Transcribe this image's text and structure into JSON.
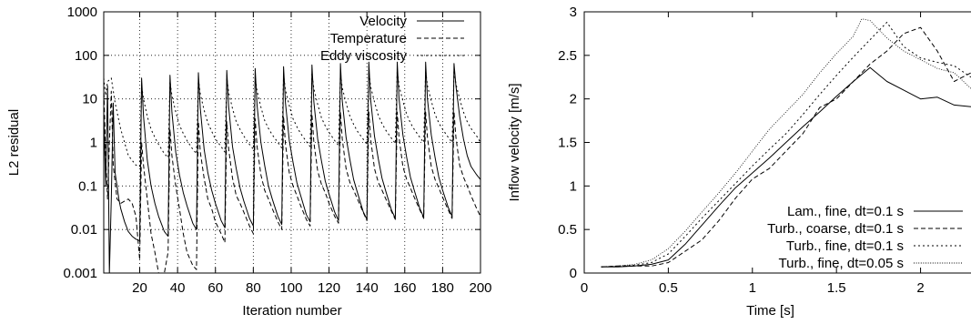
{
  "chart_data": [
    {
      "type": "line",
      "xlabel": "Iteration number",
      "ylabel": "L2 residual",
      "yscale": "log",
      "xlim": [
        1,
        200
      ],
      "ylim": [
        0.001,
        1000
      ],
      "xticks": [
        "20",
        "40",
        "60",
        "80",
        "100",
        "120",
        "140",
        "160",
        "180",
        "200"
      ],
      "yticks": [
        "0.001",
        "0.01",
        "0.1",
        "1",
        "10",
        "100",
        "1000"
      ],
      "grid": true,
      "legend_position": "top-right",
      "series": [
        {
          "name": "Velocity",
          "line_style": "solid",
          "x": [
            1,
            2,
            3,
            4,
            5,
            6,
            7,
            8,
            9,
            10,
            12,
            14,
            16,
            18,
            20,
            21,
            22,
            24,
            26,
            28,
            30,
            33,
            35,
            36,
            37,
            39,
            41,
            43,
            45,
            48,
            50,
            51,
            52,
            54,
            56,
            58,
            60,
            63,
            65,
            66,
            67,
            69,
            71,
            73,
            75,
            78,
            80,
            81,
            82,
            84,
            86,
            88,
            90,
            93,
            95,
            96,
            97,
            99,
            101,
            103,
            105,
            108,
            110,
            111,
            112,
            114,
            116,
            118,
            120,
            123,
            125,
            126,
            127,
            129,
            131,
            133,
            135,
            138,
            140,
            141,
            142,
            144,
            146,
            148,
            150,
            153,
            155,
            156,
            157,
            159,
            161,
            163,
            165,
            168,
            170,
            171,
            172,
            174,
            176,
            178,
            180,
            183,
            185,
            186,
            187,
            189,
            191,
            193,
            195,
            198,
            200
          ],
          "y": [
            5,
            0.1,
            20,
            0.001,
            0.05,
            8,
            0.2,
            0.1,
            0.05,
            0.03,
            0.015,
            0.009,
            0.007,
            0.006,
            0.0055,
            30,
            4,
            0.4,
            0.1,
            0.04,
            0.02,
            0.009,
            0.007,
            35,
            5,
            0.6,
            0.18,
            0.07,
            0.035,
            0.014,
            0.01,
            40,
            6,
            0.7,
            0.2,
            0.08,
            0.04,
            0.016,
            0.011,
            45,
            6.5,
            0.8,
            0.25,
            0.09,
            0.045,
            0.018,
            0.012,
            50,
            7,
            1,
            0.3,
            0.1,
            0.05,
            0.02,
            0.013,
            55,
            8,
            1.1,
            0.35,
            0.12,
            0.06,
            0.022,
            0.015,
            60,
            8.5,
            1.2,
            0.38,
            0.13,
            0.065,
            0.025,
            0.016,
            65,
            9,
            1.3,
            0.4,
            0.14,
            0.07,
            0.026,
            0.017,
            70,
            9.5,
            1.4,
            0.42,
            0.15,
            0.075,
            0.028,
            0.018,
            70,
            10,
            1.5,
            0.45,
            0.16,
            0.08,
            0.03,
            0.019,
            70,
            10,
            1.5,
            0.45,
            0.16,
            0.08,
            0.032,
            0.02,
            65,
            20,
            4,
            1.2,
            0.5,
            0.28,
            0.18,
            0.14
          ]
        },
        {
          "name": "Temperature",
          "line_style": "dashed",
          "x": [
            1,
            2,
            3,
            4,
            5,
            6,
            8,
            10,
            12,
            14,
            16,
            18,
            20,
            21,
            22,
            24,
            26,
            28,
            30,
            33,
            35,
            36,
            37,
            39,
            41,
            43,
            45,
            48,
            50,
            51,
            52,
            54,
            56,
            58,
            60,
            63,
            65,
            66,
            67,
            69,
            71,
            73,
            75,
            78,
            80,
            81,
            82,
            84,
            86,
            88,
            90,
            93,
            95,
            96,
            97,
            99,
            101,
            103,
            105,
            108,
            110,
            111,
            112,
            114,
            116,
            118,
            120,
            123,
            125,
            126,
            127,
            129,
            131,
            133,
            135,
            138,
            140,
            141,
            142,
            144,
            146,
            148,
            150,
            153,
            155,
            156,
            157,
            159,
            161,
            163,
            165,
            168,
            170,
            171,
            172,
            174,
            176,
            178,
            180,
            183,
            185,
            186,
            187,
            189,
            191,
            193,
            195,
            198,
            200
          ],
          "y": [
            20,
            0.5,
            0.05,
            1,
            15,
            0.3,
            0.05,
            0.04,
            0.045,
            0.05,
            0.04,
            0.02,
            0.002,
            1,
            0.3,
            0.05,
            0.008,
            0.003,
            0.001,
            0.0007,
            0.003,
            2,
            0.5,
            0.1,
            0.03,
            0.008,
            0.003,
            0.0015,
            0.0012,
            3,
            0.6,
            0.15,
            0.05,
            0.03,
            0.015,
            0.008,
            0.005,
            3,
            0.7,
            0.15,
            0.06,
            0.04,
            0.025,
            0.012,
            0.008,
            3.5,
            0.8,
            0.18,
            0.08,
            0.05,
            0.03,
            0.015,
            0.01,
            4,
            0.9,
            0.2,
            0.1,
            0.06,
            0.035,
            0.017,
            0.012,
            4.5,
            1,
            0.22,
            0.11,
            0.07,
            0.04,
            0.02,
            0.014,
            5,
            1.2,
            0.25,
            0.12,
            0.08,
            0.05,
            0.025,
            0.016,
            5,
            1.2,
            0.25,
            0.12,
            0.08,
            0.05,
            0.026,
            0.017,
            5,
            1.3,
            0.28,
            0.14,
            0.09,
            0.055,
            0.028,
            0.018,
            5,
            1.3,
            0.28,
            0.14,
            0.09,
            0.055,
            0.028,
            0.018,
            5,
            1.3,
            0.3,
            0.16,
            0.1,
            0.06,
            0.03,
            0.02
          ]
        },
        {
          "name": "Eddy viscosity",
          "line_style": "dotted",
          "x": [
            1,
            2,
            3,
            5,
            7,
            10,
            14,
            18,
            20,
            21,
            22,
            24,
            26,
            28,
            30,
            33,
            35,
            36,
            37,
            39,
            41,
            43,
            45,
            48,
            50,
            51,
            52,
            54,
            56,
            58,
            60,
            63,
            65,
            66,
            67,
            69,
            71,
            73,
            75,
            78,
            80,
            81,
            82,
            84,
            86,
            88,
            90,
            93,
            95,
            96,
            97,
            99,
            101,
            103,
            105,
            108,
            110,
            111,
            112,
            114,
            116,
            118,
            120,
            123,
            125,
            126,
            127,
            129,
            131,
            133,
            135,
            138,
            140,
            141,
            142,
            144,
            146,
            148,
            150,
            153,
            155,
            156,
            157,
            159,
            161,
            163,
            165,
            168,
            170,
            171,
            172,
            174,
            176,
            178,
            180,
            183,
            185,
            186,
            187,
            189,
            191,
            193,
            195,
            198,
            200
          ],
          "y": [
            30,
            12,
            25,
            30,
            8,
            2,
            0.5,
            0.3,
            0.28,
            20,
            10,
            4,
            2,
            1.3,
            0.9,
            0.55,
            0.45,
            25,
            12,
            5,
            2.5,
            1.6,
            1.1,
            0.7,
            0.55,
            28,
            13,
            5.5,
            2.8,
            1.8,
            1.2,
            0.8,
            0.6,
            30,
            14,
            6,
            3,
            2,
            1.4,
            0.9,
            0.7,
            32,
            15,
            6.5,
            3.2,
            2.1,
            1.5,
            1,
            0.75,
            35,
            16,
            7,
            3.5,
            2.3,
            1.6,
            1.05,
            0.8,
            38,
            17,
            7.5,
            3.7,
            2.4,
            1.7,
            1.1,
            0.85,
            40,
            18,
            8,
            4,
            2.6,
            1.8,
            1.2,
            0.9,
            42,
            19,
            8.5,
            4.2,
            2.7,
            1.9,
            1.25,
            0.95,
            45,
            20,
            9,
            4.4,
            2.8,
            2,
            1.3,
            1,
            45,
            20,
            9,
            4.4,
            2.8,
            2,
            1.3,
            1,
            45,
            22,
            10,
            5,
            3,
            2.1,
            1.4,
            1
          ]
        }
      ]
    },
    {
      "type": "line",
      "xlabel": "Time [s]",
      "ylabel": "Inflow velocity [m/s]",
      "xlim": [
        0,
        2.3
      ],
      "ylim": [
        0,
        3
      ],
      "xticks": [
        "0",
        "0.5",
        "1",
        "1.5",
        "2"
      ],
      "yticks": [
        "0",
        "0.5",
        "1",
        "1.5",
        "2",
        "2.5",
        "3"
      ],
      "grid": false,
      "legend_position": "bottom-right",
      "series": [
        {
          "name": "Lam., fine, dt=0.1 s",
          "line_style": "solid",
          "x": [
            0.1,
            0.2,
            0.3,
            0.4,
            0.5,
            0.6,
            0.7,
            0.8,
            0.9,
            1.0,
            1.1,
            1.2,
            1.3,
            1.4,
            1.5,
            1.6,
            1.7,
            1.8,
            1.9,
            2.0,
            2.1,
            2.2,
            2.3
          ],
          "y": [
            0.07,
            0.07,
            0.08,
            0.1,
            0.15,
            0.33,
            0.55,
            0.77,
            0.98,
            1.15,
            1.32,
            1.5,
            1.68,
            1.85,
            2.03,
            2.2,
            2.36,
            2.2,
            2.1,
            2.0,
            2.02,
            1.93,
            1.91
          ]
        },
        {
          "name": "Turb., coarse, dt=0.1 s",
          "line_style": "dashed",
          "x": [
            0.1,
            0.2,
            0.3,
            0.4,
            0.5,
            0.6,
            0.7,
            0.8,
            0.9,
            1.0,
            1.1,
            1.2,
            1.3,
            1.4,
            1.5,
            1.6,
            1.7,
            1.8,
            1.9,
            2.0,
            2.1,
            2.2,
            2.3
          ],
          "y": [
            0.07,
            0.08,
            0.08,
            0.08,
            0.12,
            0.25,
            0.38,
            0.6,
            0.86,
            1.08,
            1.2,
            1.4,
            1.6,
            1.9,
            2.0,
            2.2,
            2.4,
            2.55,
            2.75,
            2.82,
            2.55,
            2.2,
            2.3
          ]
        },
        {
          "name": "Turb., fine, dt=0.1 s",
          "line_style": "dotted",
          "x": [
            0.1,
            0.2,
            0.3,
            0.4,
            0.5,
            0.6,
            0.7,
            0.8,
            0.9,
            1.0,
            1.1,
            1.2,
            1.3,
            1.4,
            1.5,
            1.6,
            1.7,
            1.8,
            1.9,
            2.0,
            2.1,
            2.2,
            2.3
          ],
          "y": [
            0.07,
            0.08,
            0.09,
            0.12,
            0.22,
            0.42,
            0.63,
            0.83,
            1.03,
            1.23,
            1.42,
            1.6,
            1.82,
            2.05,
            2.27,
            2.48,
            2.68,
            2.88,
            2.6,
            2.47,
            2.42,
            2.38,
            2.25
          ]
        },
        {
          "name": "Turb., fine, dt=0.05 s",
          "line_style": "dense-dotted",
          "x": [
            0.1,
            0.2,
            0.3,
            0.4,
            0.5,
            0.6,
            0.7,
            0.8,
            0.9,
            1.0,
            1.1,
            1.2,
            1.3,
            1.4,
            1.5,
            1.6,
            1.65,
            1.7,
            1.8,
            1.9,
            2.0,
            2.1,
            2.2,
            2.3
          ],
          "y": [
            0.07,
            0.08,
            0.1,
            0.15,
            0.28,
            0.48,
            0.7,
            0.92,
            1.15,
            1.4,
            1.65,
            1.85,
            2.05,
            2.3,
            2.52,
            2.72,
            2.92,
            2.9,
            2.7,
            2.55,
            2.45,
            2.35,
            2.3,
            2.12
          ]
        }
      ]
    }
  ]
}
